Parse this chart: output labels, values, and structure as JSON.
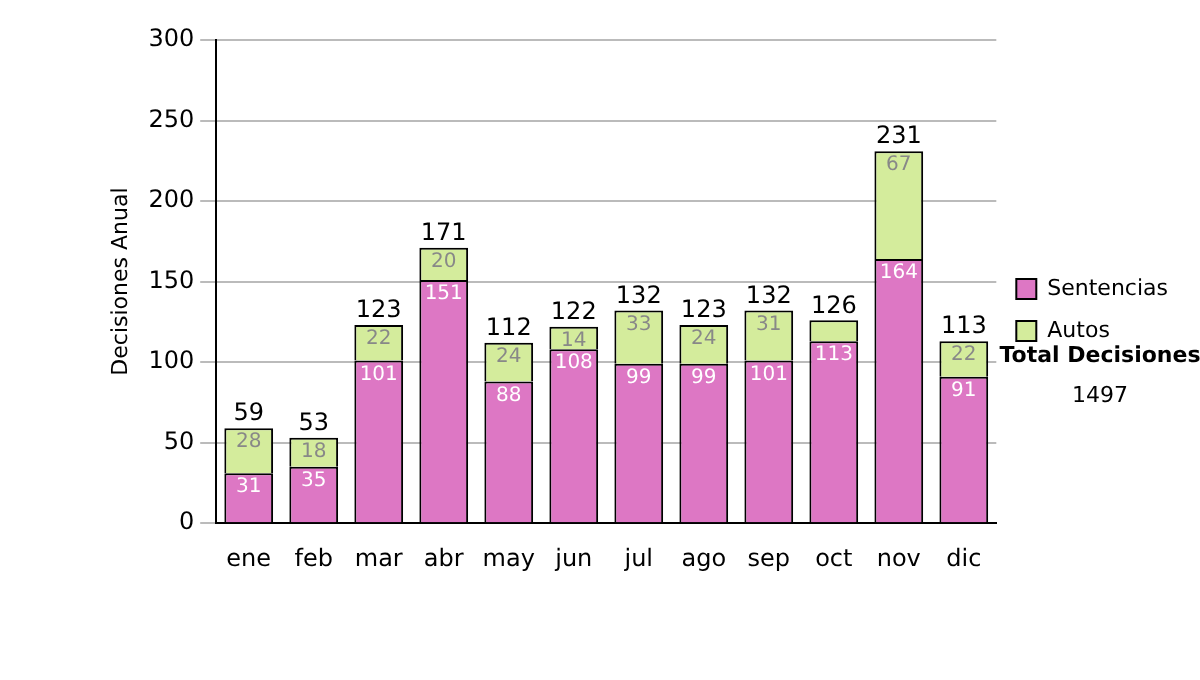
{
  "chart_data": {
    "type": "bar",
    "stacked": true,
    "categories": [
      "ene",
      "feb",
      "mar",
      "abr",
      "may",
      "jun",
      "jul",
      "ago",
      "sep",
      "oct",
      "nov",
      "dic"
    ],
    "series": [
      {
        "name": "Sentencias",
        "color": "#dd77c4",
        "values": [
          31,
          35,
          101,
          151,
          88,
          108,
          99,
          99,
          101,
          113,
          164,
          91
        ],
        "value_labels": [
          "31",
          "35",
          "101",
          "151",
          "88",
          "108",
          "99",
          "99",
          "101",
          "113",
          "164",
          "91"
        ]
      },
      {
        "name": "Autos",
        "color": "#d4ec9c",
        "values": [
          28,
          18,
          22,
          20,
          24,
          14,
          33,
          24,
          31,
          13,
          67,
          22
        ],
        "value_labels": [
          "28",
          "18",
          "22",
          "20",
          "24",
          "14",
          "33",
          "24",
          "31",
          null,
          "67",
          "22"
        ]
      }
    ],
    "totals": [
      "59",
      "53",
      "123",
      "171",
      "112",
      "122",
      "132",
      "123",
      "132",
      "126",
      "231",
      "113"
    ],
    "ylabel": "Decisiones Anual",
    "ylim": [
      0,
      300
    ],
    "yticks": [
      0,
      50,
      100,
      150,
      200,
      250,
      300
    ],
    "grid": "y",
    "legend": "right",
    "annotations": [
      "Total Decisiones",
      "1497"
    ]
  }
}
